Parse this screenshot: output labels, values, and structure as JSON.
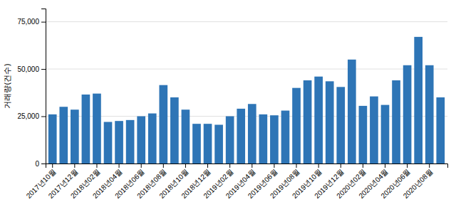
{
  "chart_data": {
    "type": "bar",
    "ylabel": "거래량(건수)",
    "categories": [
      "2017년10월",
      null,
      "2017년12월",
      null,
      "2018년02월",
      null,
      "2018년04월",
      null,
      "2018년06월",
      null,
      "2018년08월",
      null,
      "2018년10월",
      null,
      "2018년12월",
      null,
      "2019년02월",
      null,
      "2019년04월",
      null,
      "2019년06월",
      null,
      "2019년08월",
      null,
      "2019년10월",
      null,
      "2019년12월",
      null,
      "2020년02월",
      null,
      "2020년04월",
      null,
      "2020년06월",
      null,
      "2020년08월",
      null
    ],
    "values": [
      26000,
      30000,
      28500,
      36500,
      37000,
      22000,
      22500,
      23000,
      25000,
      26500,
      41500,
      35000,
      28500,
      21000,
      21000,
      20500,
      25000,
      29000,
      31500,
      26000,
      25500,
      28000,
      40000,
      44000,
      46000,
      43500,
      40500,
      55000,
      30500,
      35500,
      31000,
      44000,
      52000,
      67000,
      52000,
      35000
    ],
    "color": "#2e75b6",
    "ylim": [
      0,
      82000
    ],
    "yticks": [
      0,
      {
        "value": 25000,
        "label": "25,000"
      },
      {
        "value": 50000,
        "label": "50,000"
      },
      {
        "value": 75000,
        "label": "75,000"
      }
    ],
    "grid": true
  }
}
